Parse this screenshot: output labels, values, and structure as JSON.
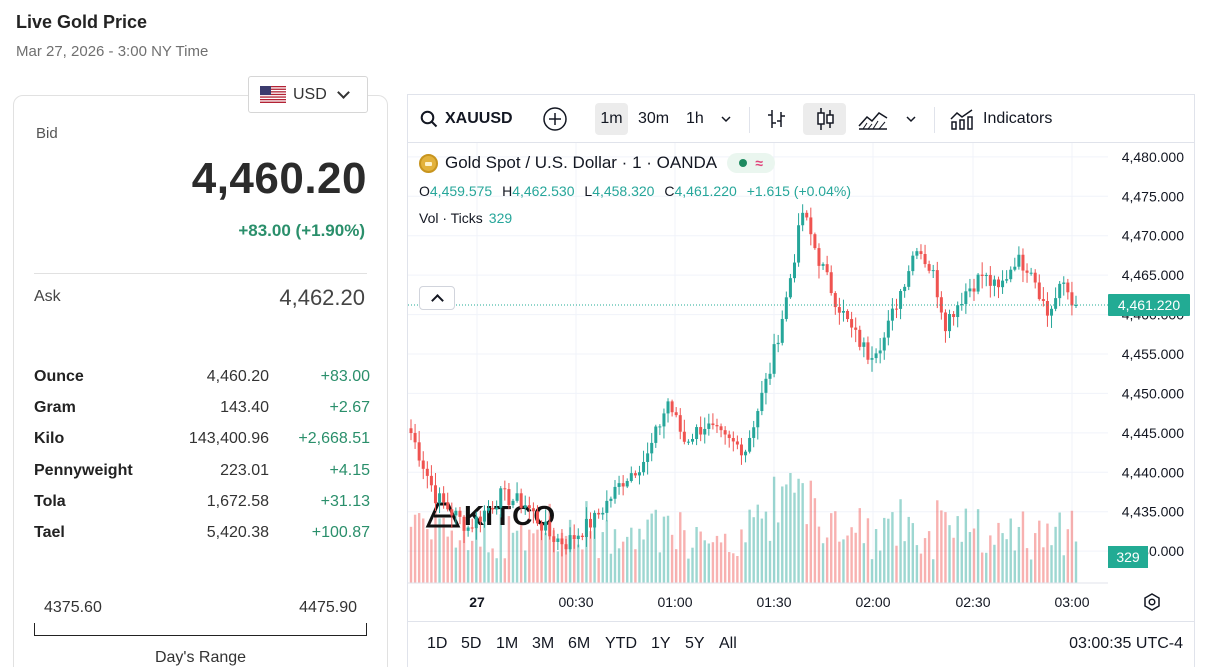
{
  "header": {
    "title": "Live Gold Price",
    "subtitle": "Mar 27, 2026 - 3:00 NY Time"
  },
  "currency": {
    "selected": "USD",
    "flag_icon": "us-flag-icon"
  },
  "quote": {
    "bid_label": "Bid",
    "bid": "4,460.20",
    "change": "+83.00 (+1.90%)",
    "ask_label": "Ask",
    "ask": "4,462.20"
  },
  "units": [
    {
      "name": "Ounce",
      "value": "4,460.20",
      "change": "+83.00"
    },
    {
      "name": "Gram",
      "value": "143.40",
      "change": "+2.67"
    },
    {
      "name": "Kilo",
      "value": "143,400.96",
      "change": "+2,668.51"
    },
    {
      "name": "Pennyweight",
      "value": "223.01",
      "change": "+4.15"
    },
    {
      "name": "Tola",
      "value": "1,672.58",
      "change": "+31.13"
    },
    {
      "name": "Tael",
      "value": "5,420.38",
      "change": "+100.87"
    }
  ],
  "day_range": {
    "low": "4375.60",
    "high": "4475.90",
    "label": "Day's Range"
  },
  "toolbar": {
    "symbol": "XAUUSD",
    "intervals": [
      "1m",
      "30m",
      "1h"
    ],
    "active_interval": "1m",
    "indicators_label": "Indicators"
  },
  "legend": {
    "name": "Gold Spot / U.S. Dollar · 1 · OANDA",
    "o_label": "O",
    "o": "4,459.575",
    "h_label": "H",
    "h": "4,462.530",
    "l_label": "L",
    "l": "4,458.320",
    "c_label": "C",
    "c": "4,461.220",
    "change": "+1.615 (+0.04%)",
    "volume_label": "Vol · Ticks",
    "volume": "329"
  },
  "watermark": "KITCO",
  "timeframes": [
    "1D",
    "5D",
    "1M",
    "3M",
    "6M",
    "YTD",
    "1Y",
    "5Y",
    "All"
  ],
  "clock": "03:00:35 UTC-4",
  "colors": {
    "up": "#26a69a",
    "down": "#ef5350",
    "accent_green": "#2a8f6b",
    "price_tag": "#22ab94"
  },
  "chart_data": {
    "type": "candlestick",
    "y_ticks": [
      "4,480.000",
      "4,475.000",
      "4,470.000",
      "4,465.000",
      "4,460.000",
      "4,455.000",
      "4,450.000",
      "4,445.000",
      "4,440.000",
      "4,435.000",
      "4,430.000"
    ],
    "ylim": [
      4429,
      4481
    ],
    "x_ticks": [
      "27",
      "00:30",
      "01:00",
      "01:30",
      "02:00",
      "02:30",
      "03:00"
    ],
    "last_price_label": "4,461.220",
    "last_price": 4461.22,
    "last_volume_label": "329",
    "key_closes": [
      {
        "t": 0,
        "v": 4445
      },
      {
        "t": 6,
        "v": 4437
      },
      {
        "t": 14,
        "v": 4433
      },
      {
        "t": 22,
        "v": 4437
      },
      {
        "t": 28,
        "v": 4436
      },
      {
        "t": 34,
        "v": 4432
      },
      {
        "t": 38,
        "v": 4431
      },
      {
        "t": 45,
        "v": 4434
      },
      {
        "t": 52,
        "v": 4439
      },
      {
        "t": 58,
        "v": 4442
      },
      {
        "t": 63,
        "v": 4449
      },
      {
        "t": 67,
        "v": 4444
      },
      {
        "t": 72,
        "v": 4446
      },
      {
        "t": 77,
        "v": 4444
      },
      {
        "t": 82,
        "v": 4443
      },
      {
        "t": 88,
        "v": 4453
      },
      {
        "t": 92,
        "v": 4462
      },
      {
        "t": 96,
        "v": 4473
      },
      {
        "t": 100,
        "v": 4467
      },
      {
        "t": 104,
        "v": 4462
      },
      {
        "t": 108,
        "v": 4458
      },
      {
        "t": 112,
        "v": 4455
      },
      {
        "t": 116,
        "v": 4457
      },
      {
        "t": 120,
        "v": 4463
      },
      {
        "t": 124,
        "v": 4469
      },
      {
        "t": 128,
        "v": 4465
      },
      {
        "t": 131,
        "v": 4459
      },
      {
        "t": 136,
        "v": 4463
      },
      {
        "t": 140,
        "v": 4465
      },
      {
        "t": 144,
        "v": 4463
      },
      {
        "t": 148,
        "v": 4467
      },
      {
        "t": 152,
        "v": 4466
      },
      {
        "t": 156,
        "v": 4460
      },
      {
        "t": 160,
        "v": 4464
      },
      {
        "t": 163,
        "v": 4461
      }
    ]
  }
}
